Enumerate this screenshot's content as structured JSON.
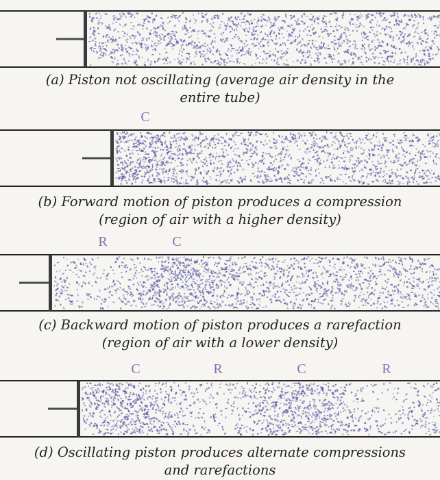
{
  "panels": [
    {
      "id": "a",
      "caption_line1": "(a) Piston not oscillating (average air density in the",
      "caption_line2": "entire tube)",
      "markers": []
    },
    {
      "id": "b",
      "caption_line1": "(b) Forward motion of piston produces a compression",
      "caption_line2": "(region of air with a higher density)",
      "markers": [
        {
          "label": "C"
        }
      ]
    },
    {
      "id": "c",
      "caption_line1": "(c) Backward motion of piston produces a rarefaction",
      "caption_line2": "(region of air with a lower density)",
      "markers": [
        {
          "label": "R"
        },
        {
          "label": "C"
        }
      ]
    },
    {
      "id": "d",
      "caption_line1": "(d) Oscillating piston produces alternate compressions",
      "caption_line2": "and rarefactions",
      "markers": [
        {
          "label": "C"
        },
        {
          "label": "R"
        },
        {
          "label": "C"
        },
        {
          "label": "R"
        }
      ]
    }
  ],
  "colors": {
    "particle": "#5b5ea6",
    "tube_line": "#222222",
    "marker": "#8a6bb5"
  }
}
